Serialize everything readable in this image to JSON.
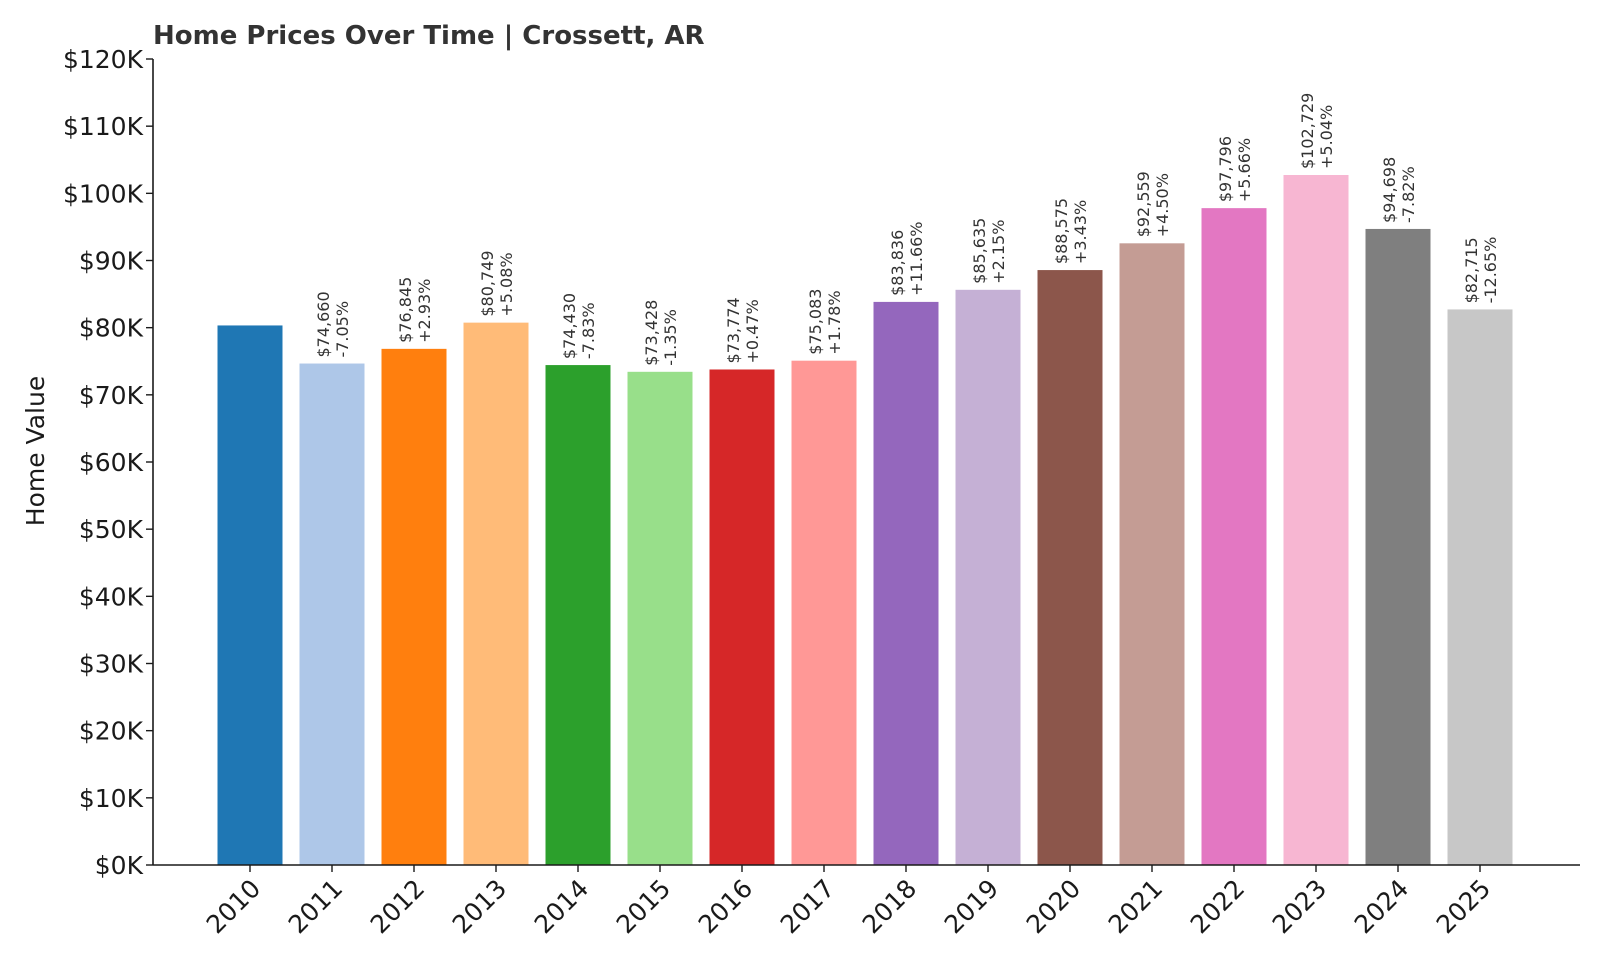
{
  "chart_data": {
    "type": "bar",
    "title": "Home Prices Over Time | Crossett, AR",
    "xlabel": "",
    "ylabel": "Home Value",
    "ylim": [
      0,
      120000
    ],
    "y_ticks": [
      0,
      10000,
      20000,
      30000,
      40000,
      50000,
      60000,
      70000,
      80000,
      90000,
      100000,
      110000,
      120000
    ],
    "y_tick_labels": [
      "$0K",
      "$10K",
      "$20K",
      "$30K",
      "$40K",
      "$50K",
      "$60K",
      "$70K",
      "$80K",
      "$90K",
      "$100K",
      "$110K",
      "$120K"
    ],
    "categories": [
      "2010",
      "2011",
      "2012",
      "2013",
      "2014",
      "2015",
      "2016",
      "2017",
      "2018",
      "2019",
      "2020",
      "2021",
      "2022",
      "2023",
      "2024",
      "2025"
    ],
    "values": [
      80330,
      74660,
      76845,
      80749,
      74430,
      73428,
      73774,
      75083,
      83836,
      85635,
      88575,
      92559,
      97796,
      102729,
      94698,
      82715
    ],
    "value_labels": [
      "",
      "$74,660",
      "$76,845",
      "$80,749",
      "$74,430",
      "$73,428",
      "$73,774",
      "$75,083",
      "$83,836",
      "$85,635",
      "$88,575",
      "$92,559",
      "$97,796",
      "$102,729",
      "$94,698",
      "$82,715"
    ],
    "change_labels": [
      "",
      "-7.05%",
      "+2.93%",
      "+5.08%",
      "-7.83%",
      "-1.35%",
      "+0.47%",
      "+1.78%",
      "+11.66%",
      "+2.15%",
      "+3.43%",
      "+4.50%",
      "+5.66%",
      "+5.04%",
      "-7.82%",
      "-12.65%"
    ],
    "colors": [
      "#1f77b4",
      "#aec7e8",
      "#ff7f0e",
      "#ffbb78",
      "#2ca02c",
      "#98df8a",
      "#d62728",
      "#ff9896",
      "#9467bd",
      "#c5b0d5",
      "#8c564b",
      "#c49c94",
      "#e377c2",
      "#f7b6d2",
      "#7f7f7f",
      "#c7c7c7"
    ],
    "grid": false,
    "legend": "none"
  }
}
